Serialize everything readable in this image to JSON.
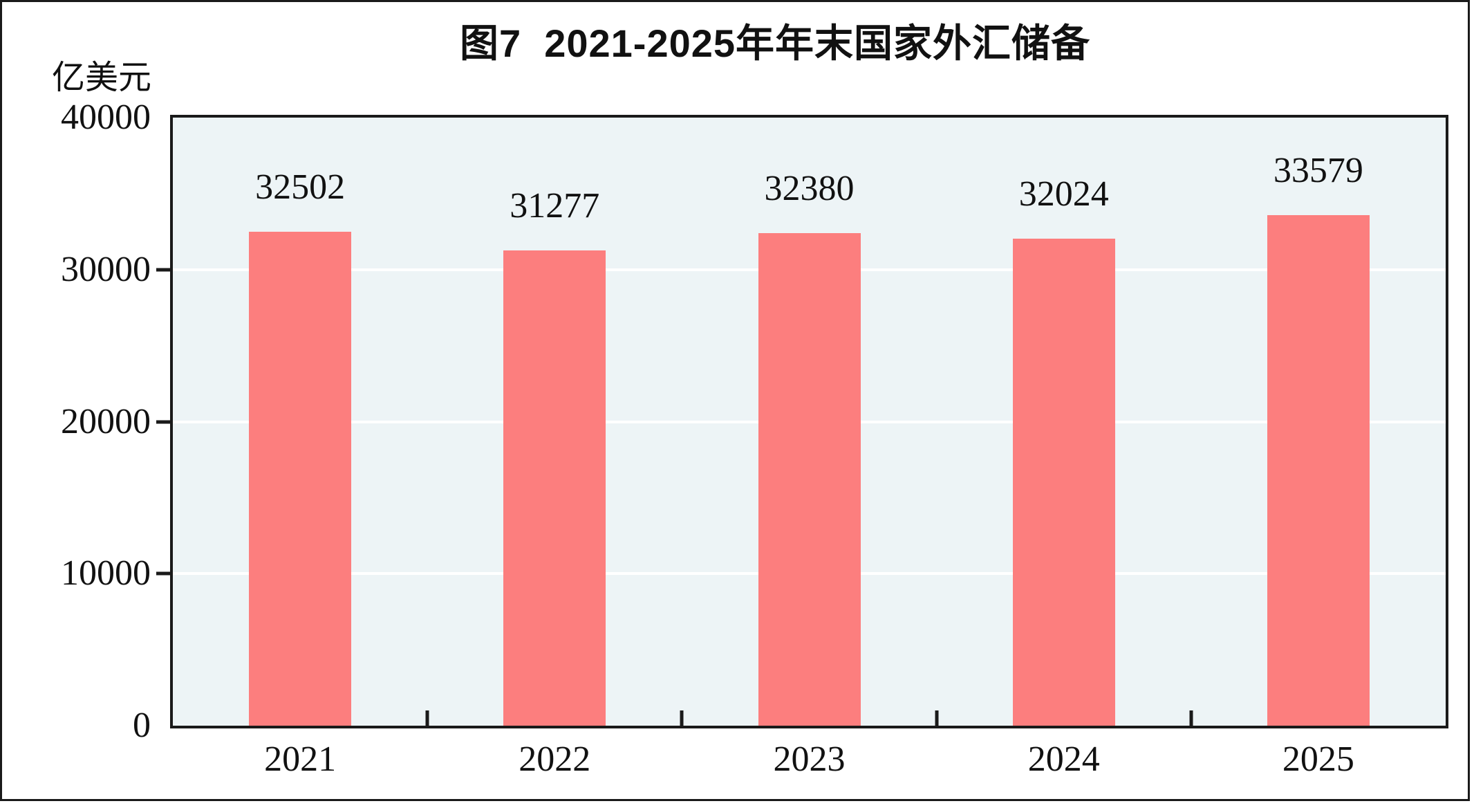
{
  "figure": {
    "title": "图7  2021-2025年年末国家外汇储备",
    "unit_label": "亿美元"
  },
  "chart_data": {
    "type": "bar",
    "title": "图7  2021-2025年年末国家外汇储备",
    "ylabel": "亿美元",
    "xlabel": "",
    "categories": [
      "2021",
      "2022",
      "2023",
      "2024",
      "2025"
    ],
    "values": [
      32502,
      31277,
      32380,
      32024,
      33579
    ],
    "ylim": [
      0,
      40000
    ],
    "ytick_labels": [
      "40000",
      "30000",
      "20000",
      "10000",
      "0"
    ],
    "grid": "horizontal white gridlines at 10000, 20000, 30000",
    "legend": "none",
    "data_labels": "values shown above each bar",
    "bar_color": "#FC7E7E",
    "plot_background": "#EDF4F6",
    "border_color": "#1a1a1a",
    "text_color": "#111111"
  }
}
